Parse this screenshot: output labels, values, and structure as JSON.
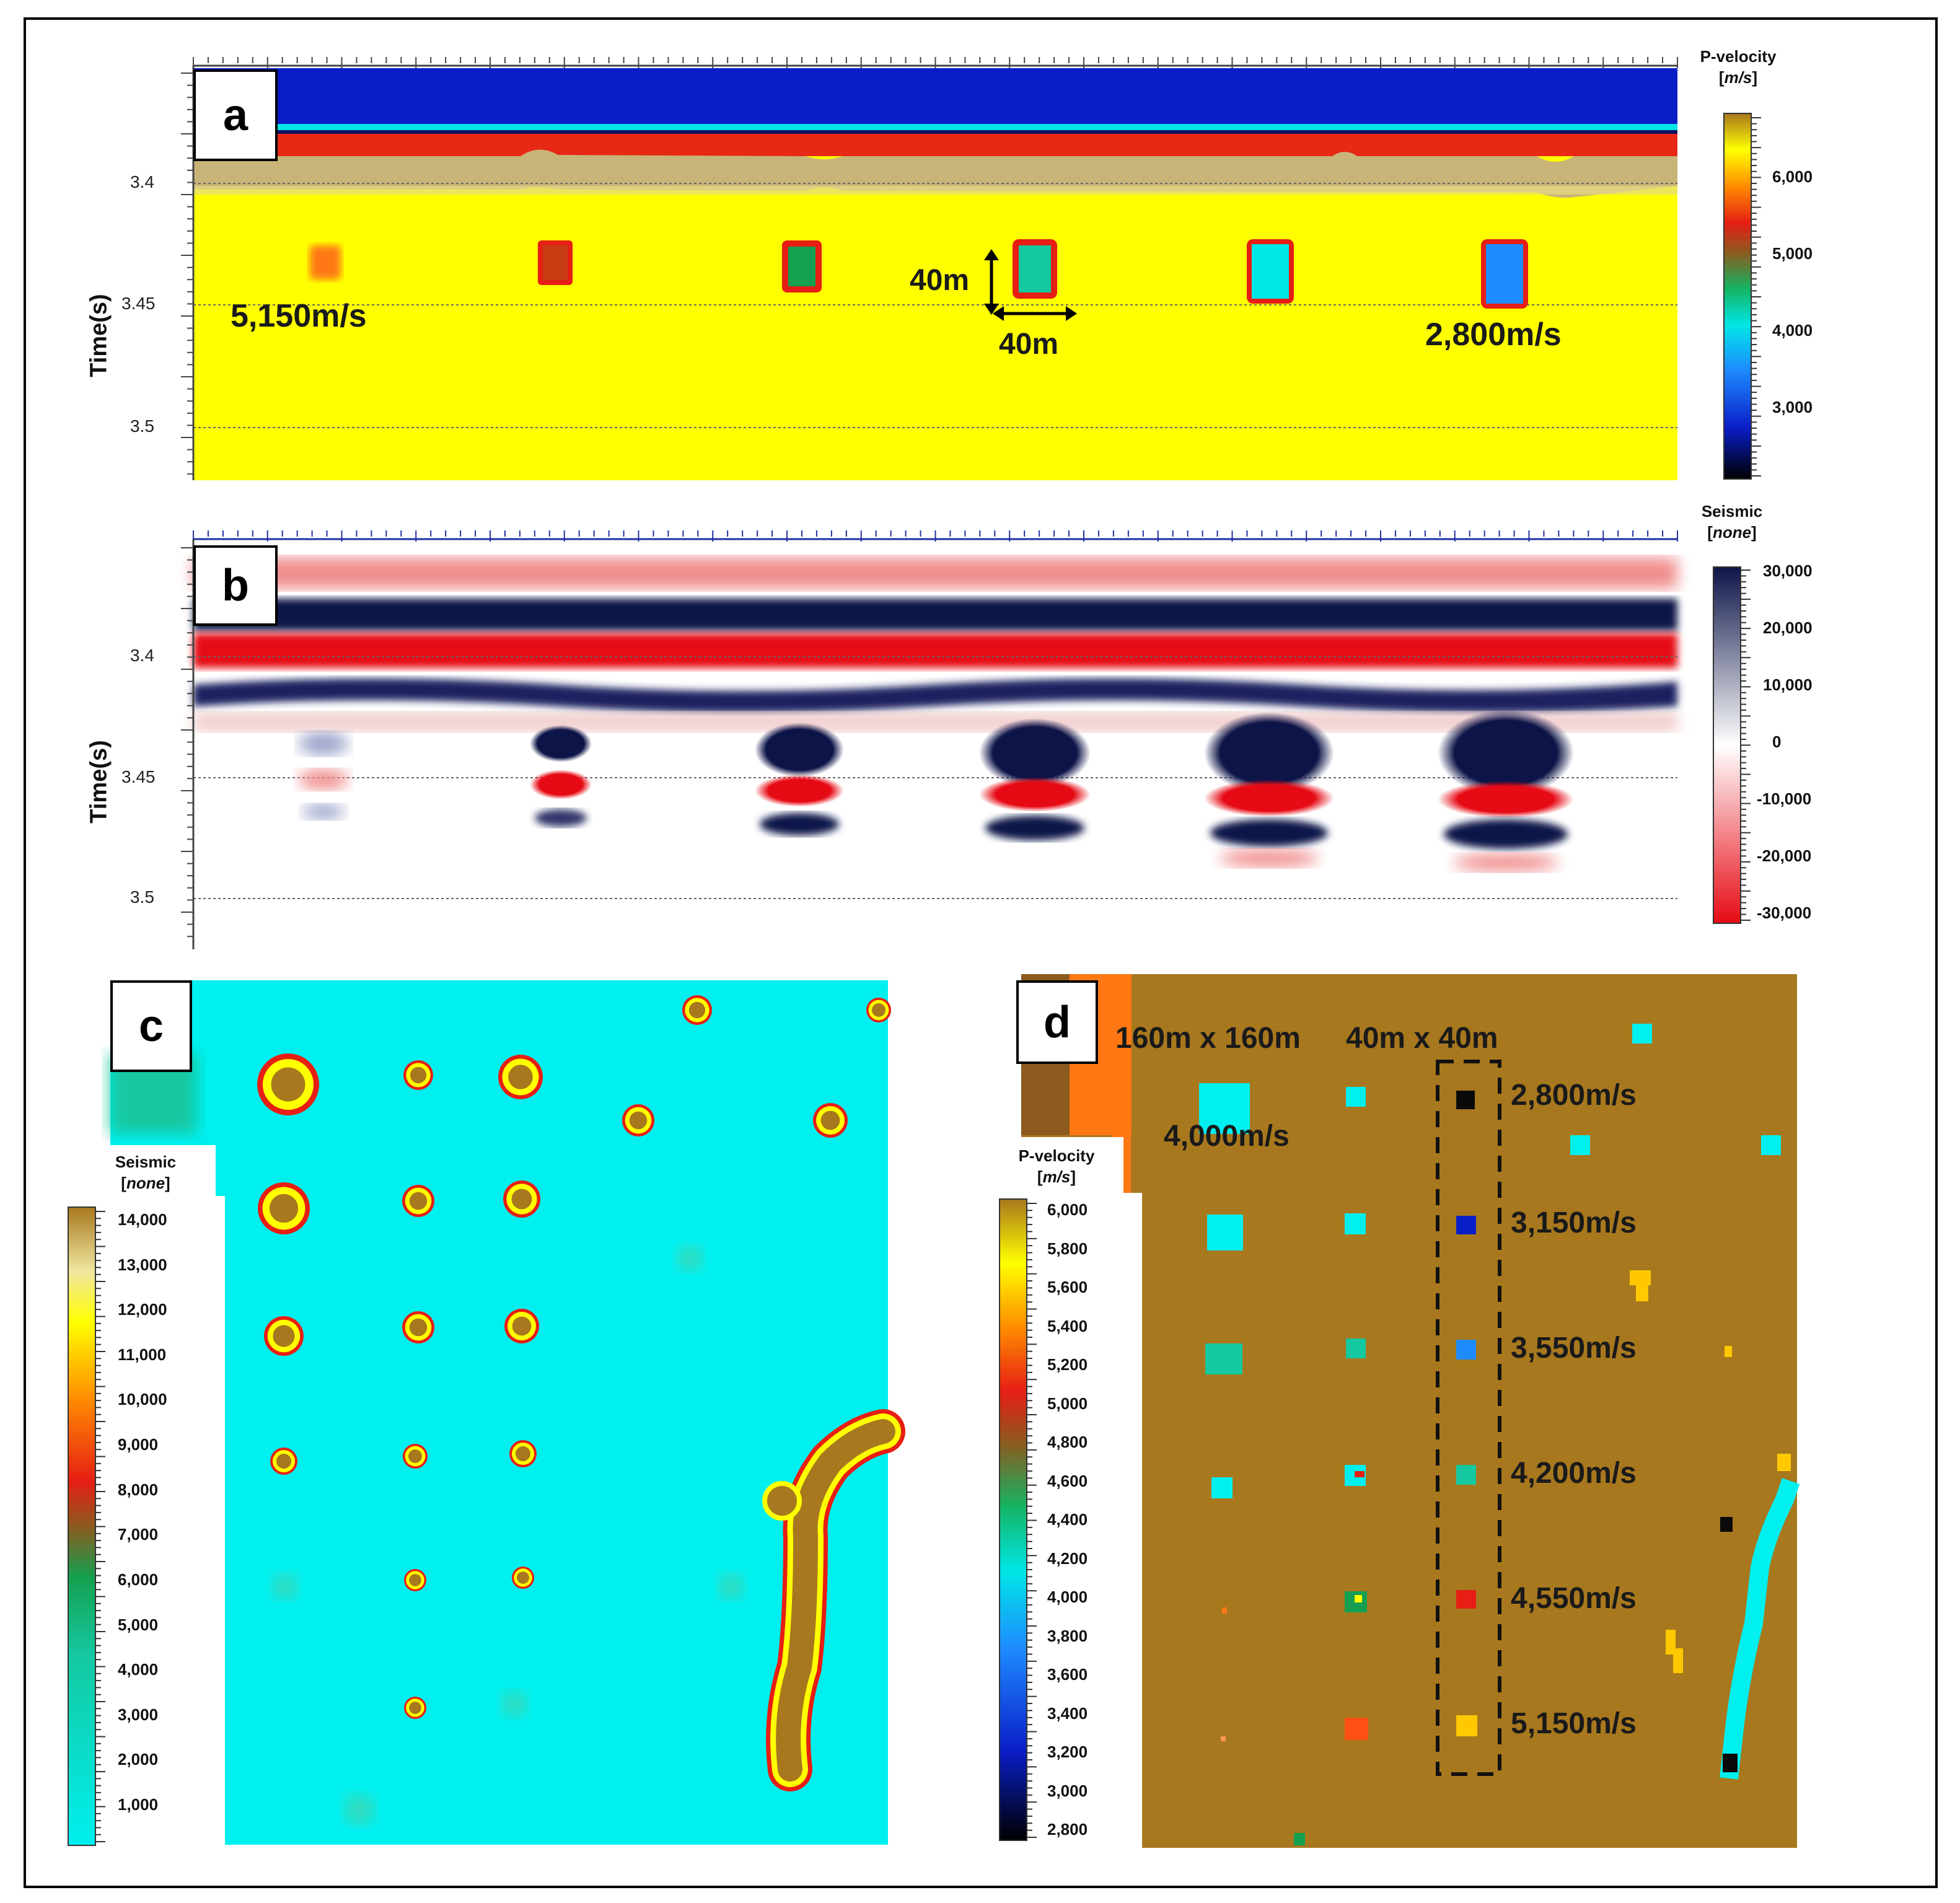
{
  "panel_a": {
    "label": "a",
    "y_axis_title": "Time(s)",
    "y_ticks": [
      "3.4",
      "3.45",
      "3.5"
    ],
    "annotations": {
      "left_velocity": "5,150m/s",
      "right_velocity": "2,800m/s",
      "height_dim": "40m",
      "width_dim": "40m"
    },
    "colorbar": {
      "title": "P-velocity",
      "unit": "m/s",
      "ticks": [
        "6,000",
        "5,000",
        "4,000",
        "3,000"
      ]
    }
  },
  "panel_b": {
    "label": "b",
    "y_axis_title": "Time(s)",
    "y_ticks": [
      "3.4",
      "3.45",
      "3.5"
    ],
    "colorbar": {
      "title": "Seismic",
      "unit": "none",
      "ticks": [
        "30,000",
        "20,000",
        "10,000",
        "0",
        "-10,000",
        "-20,000",
        "-30,000"
      ]
    }
  },
  "panel_c": {
    "label": "c",
    "colorbar": {
      "title": "Seismic",
      "unit": "none",
      "ticks": [
        "14,000",
        "13,000",
        "12,000",
        "11,000",
        "10,000",
        "9,000",
        "8,000",
        "7,000",
        "6,000",
        "5,000",
        "4,000",
        "3,000",
        "2,000",
        "1,000"
      ]
    }
  },
  "panel_d": {
    "label": "d",
    "annotations": {
      "size_large": "160m x 160m",
      "size_small": "40m x 40m",
      "large_velocity": "4,000m/s",
      "velocities": [
        "2,800m/s",
        "3,150m/s",
        "3,550m/s",
        "4,200m/s",
        "4,550m/s",
        "5,150m/s"
      ]
    },
    "colorbar": {
      "title": "P-velocity",
      "unit": "m/s",
      "ticks": [
        "6,000",
        "5,800",
        "5,600",
        "5,400",
        "5,200",
        "5,000",
        "4,800",
        "4,600",
        "4,400",
        "4,200",
        "4,000",
        "3,800",
        "3,600",
        "3,400",
        "3,200",
        "3,000",
        "2,800"
      ]
    }
  },
  "colors": {
    "velocity_background": "#ffff00",
    "deep_blue": "#0a1ec8",
    "red_layer": "#e62814",
    "tan_layer": "#c8b478",
    "seismic_navy": "#0d1448",
    "seismic_red": "#e60a14",
    "cyan_background": "#00f0f0",
    "brown_background": "#a8781e"
  }
}
